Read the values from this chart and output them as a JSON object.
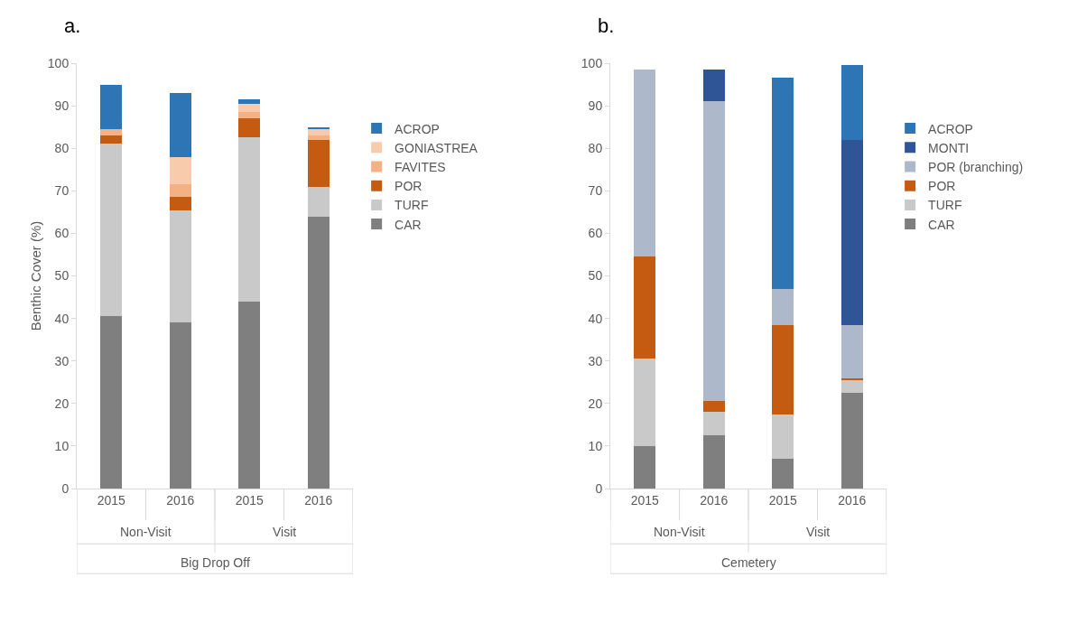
{
  "chart_data": [
    {
      "type": "bar",
      "title": "a.",
      "ylabel": "Benthic Cover (%)",
      "stacked": true,
      "legend": "right",
      "grid": false,
      "categories": [
        "2015",
        "2016",
        "2015",
        "2016"
      ],
      "ylim": [
        0,
        100
      ],
      "yticks": [
        0,
        10,
        20,
        30,
        40,
        50,
        60,
        70,
        80,
        90,
        100
      ],
      "annotations": [
        "Non-Visit",
        "Visit",
        "Big Drop Off"
      ],
      "series": [
        {
          "name": "CAR",
          "color": "#7f7f7f",
          "values": [
            40.5,
            39,
            44,
            64
          ]
        },
        {
          "name": "TURF",
          "color": "#c9c9c9",
          "values": [
            40.5,
            26.5,
            38.5,
            7
          ]
        },
        {
          "name": "POR",
          "color": "#c55a11",
          "values": [
            2,
            3,
            4.5,
            11
          ]
        },
        {
          "name": "FAVITES",
          "color": "#f4b183",
          "values": [
            1.5,
            3,
            1.5,
            1
          ]
        },
        {
          "name": "GONIASTREA",
          "color": "#f8cbad",
          "values": [
            0,
            6.5,
            2,
            1.5
          ]
        },
        {
          "name": "ACROP",
          "color": "#2e75b6",
          "values": [
            10.5,
            15,
            1,
            0.5
          ]
        }
      ]
    },
    {
      "type": "bar",
      "title": "b.",
      "stacked": true,
      "legend": "right",
      "grid": false,
      "categories": [
        "2015",
        "2016",
        "2015",
        "2016"
      ],
      "ylim": [
        0,
        100
      ],
      "yticks": [
        0,
        10,
        20,
        30,
        40,
        50,
        60,
        70,
        80,
        90,
        100
      ],
      "annotations": [
        "Non-Visit",
        "Visit",
        "Cemetery"
      ],
      "series": [
        {
          "name": "CAR",
          "color": "#7f7f7f",
          "values": [
            10,
            12.5,
            7,
            22.5
          ]
        },
        {
          "name": "TURF",
          "color": "#c9c9c9",
          "values": [
            20.5,
            5.5,
            10.5,
            3
          ]
        },
        {
          "name": "POR",
          "color": "#c55a11",
          "values": [
            24,
            2.5,
            21,
            0.5
          ]
        },
        {
          "name": "POR (branching)",
          "color": "#adb9ca",
          "values": [
            44,
            70.5,
            8.5,
            12.5
          ]
        },
        {
          "name": "MONTI",
          "color": "#2f5597",
          "values": [
            0,
            7.5,
            0,
            43.5
          ]
        },
        {
          "name": "ACROP",
          "color": "#2e75b6",
          "values": [
            0,
            0,
            49.5,
            17.5
          ]
        }
      ]
    }
  ]
}
